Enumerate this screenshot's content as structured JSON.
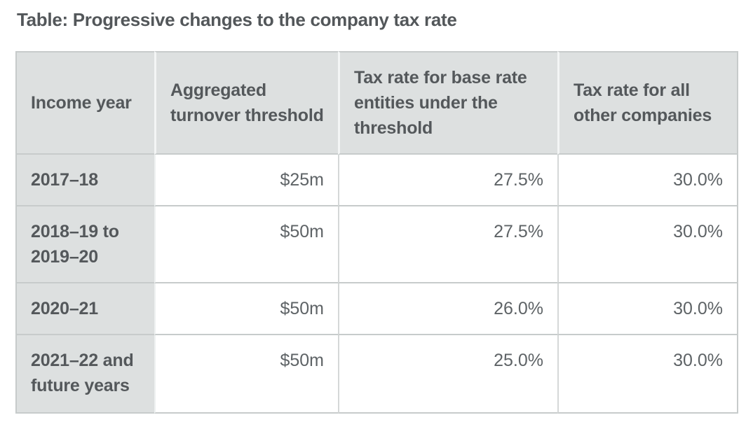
{
  "title": "Table: Progressive changes to the company tax rate",
  "table": {
    "headers": [
      "Income year",
      "Aggregated turnover threshold",
      "Tax rate for base rate entities under the threshold",
      "Tax rate for all other companies"
    ],
    "rows": [
      {
        "income_year": "2017–18",
        "turnover_threshold": "$25m",
        "base_rate_tax": "27.5%",
        "other_companies_tax": "30.0%"
      },
      {
        "income_year": "2018–19 to 2019–20",
        "turnover_threshold": "$50m",
        "base_rate_tax": "27.5%",
        "other_companies_tax": "30.0%"
      },
      {
        "income_year": "2020–21",
        "turnover_threshold": "$50m",
        "base_rate_tax": "26.0%",
        "other_companies_tax": "30.0%"
      },
      {
        "income_year": "2021–22 and future years",
        "turnover_threshold": "$50m",
        "base_rate_tax": "25.0%",
        "other_companies_tax": "30.0%"
      }
    ]
  },
  "colors": {
    "header_background": "#dde0e0",
    "row_border": "#c7cbcb",
    "header_text": "#54585b",
    "body_text": "#5e6366",
    "title_text": "#53575a"
  },
  "chart_data": {
    "type": "table",
    "title": "Table: Progressive changes to the company tax rate",
    "columns": [
      "Income year",
      "Aggregated turnover threshold",
      "Tax rate for base rate entities under the threshold",
      "Tax rate for all other companies"
    ],
    "rows": [
      [
        "2017–18",
        "$25m",
        "27.5%",
        "30.0%"
      ],
      [
        "2018–19 to 2019–20",
        "$50m",
        "27.5%",
        "30.0%"
      ],
      [
        "2020–21",
        "$50m",
        "26.0%",
        "30.0%"
      ],
      [
        "2021–22 and future years",
        "$50m",
        "25.0%",
        "30.0%"
      ]
    ]
  }
}
